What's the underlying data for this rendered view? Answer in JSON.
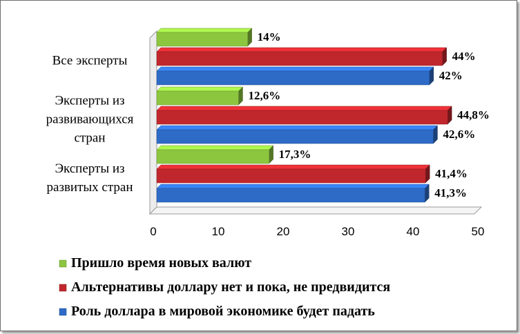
{
  "chart_data": {
    "type": "bar",
    "orientation": "horizontal",
    "categories": [
      "Все эксперты",
      "Эксперты из развивающихся стран",
      "Эксперты из развитых стран"
    ],
    "category_lines": [
      [
        "Все эксперты"
      ],
      [
        "Эксперты из",
        "развивающихся",
        "стран"
      ],
      [
        "Эксперты из",
        "развитых стран"
      ]
    ],
    "series": [
      {
        "name": "Пришло время новых валют",
        "color": "#8CC63F",
        "values": [
          14,
          12.6,
          17.3
        ],
        "labels": [
          "14%",
          "12,6%",
          "17,3%"
        ]
      },
      {
        "name": "Альтернативы доллару нет и пока, не предвидится",
        "color": "#C0272D",
        "values": [
          44,
          44.8,
          41.4
        ],
        "labels": [
          "44%",
          "44,8%",
          "41,4%"
        ]
      },
      {
        "name": "Роль доллара в мировой экономике будет падать",
        "color": "#2E6BC7",
        "values": [
          42,
          42.6,
          41.3
        ],
        "labels": [
          "42%",
          "42,6%",
          "41,3%"
        ]
      }
    ],
    "xlim": [
      0,
      50
    ],
    "xticks": [
      "0",
      "10",
      "20",
      "30",
      "40",
      "50"
    ],
    "legend_position": "bottom",
    "grid": false,
    "style": "3d"
  }
}
